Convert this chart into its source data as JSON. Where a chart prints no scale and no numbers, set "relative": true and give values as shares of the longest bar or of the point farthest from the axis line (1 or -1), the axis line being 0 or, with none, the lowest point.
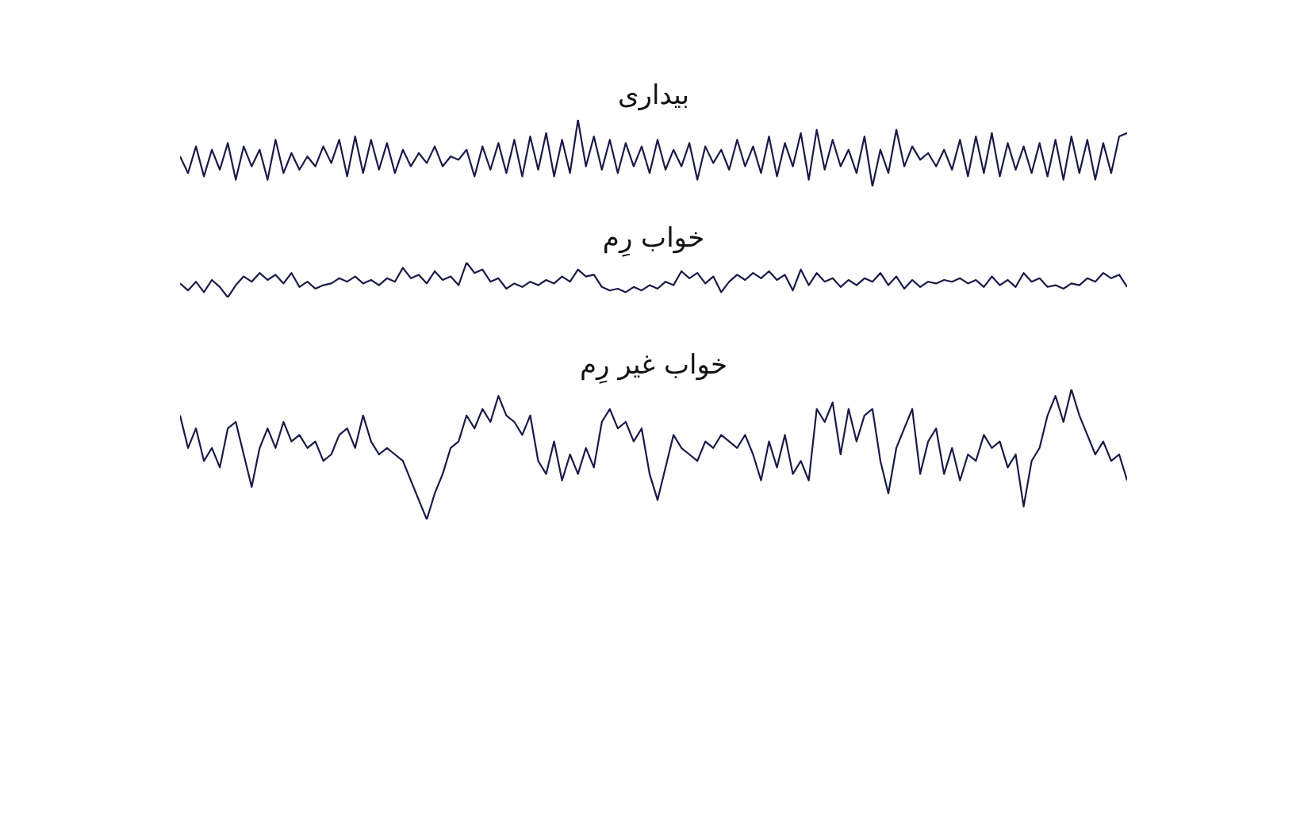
{
  "chart_data": [
    {
      "type": "line",
      "title": "بیداری",
      "relative": true,
      "tick_labels": false,
      "line_style": "solid",
      "categories": [
        null,
        null,
        null,
        null,
        null,
        null,
        null,
        null,
        null,
        null,
        null,
        null,
        null,
        null,
        null,
        null,
        null,
        null,
        null,
        null,
        null,
        null,
        null,
        null,
        null,
        null,
        null,
        null,
        null,
        null,
        null,
        null,
        null,
        null,
        null,
        null,
        null,
        null,
        null,
        null,
        null,
        null,
        null,
        null,
        null,
        null,
        null,
        null,
        null,
        null,
        null,
        null,
        null,
        null,
        null,
        null,
        null,
        null,
        null,
        null,
        null,
        null,
        null,
        null,
        null,
        null,
        null,
        null,
        null,
        null,
        null,
        null,
        null,
        null,
        null,
        null,
        null,
        null,
        null,
        null,
        null,
        null,
        null,
        null,
        null,
        null,
        null,
        null,
        null,
        null,
        null,
        null,
        null,
        null,
        null,
        null,
        null,
        null,
        null,
        null,
        null,
        null,
        null,
        null,
        null,
        null,
        null,
        null,
        null,
        null,
        null,
        null,
        null,
        null,
        null,
        null,
        null,
        null,
        null,
        null
      ],
      "series": [
        {
          "color": "#1a1a4a",
          "values": [
            0.45,
            0.2,
            0.6,
            0.15,
            0.55,
            0.25,
            0.65,
            0.1,
            0.6,
            0.3,
            0.55,
            0.1,
            0.7,
            0.2,
            0.5,
            0.25,
            0.45,
            0.3,
            0.6,
            0.35,
            0.7,
            0.15,
            0.75,
            0.2,
            0.7,
            0.25,
            0.65,
            0.2,
            0.55,
            0.3,
            0.5,
            0.35,
            0.6,
            0.3,
            0.45,
            0.4,
            0.55,
            0.15,
            0.6,
            0.25,
            0.65,
            0.2,
            0.7,
            0.15,
            0.75,
            0.25,
            0.8,
            0.15,
            0.7,
            0.2,
            1.0,
            0.3,
            0.75,
            0.25,
            0.7,
            0.2,
            0.65,
            0.3,
            0.6,
            0.2,
            0.7,
            0.25,
            0.55,
            0.3,
            0.65,
            0.1,
            0.6,
            0.35,
            0.55,
            0.25,
            0.7,
            0.3,
            0.6,
            0.2,
            0.75,
            0.15,
            0.65,
            0.3,
            0.8,
            0.1,
            0.85,
            0.25,
            0.7,
            0.3,
            0.55,
            0.2,
            0.75,
            0.0,
            0.55,
            0.2,
            0.85,
            0.3,
            0.6,
            0.4,
            0.5,
            0.3,
            0.55,
            0.25,
            0.7,
            0.15,
            0.75,
            0.2,
            0.8,
            0.15,
            0.65,
            0.25,
            0.6,
            0.2,
            0.65,
            0.15,
            0.7,
            0.1,
            0.75,
            0.2,
            0.7,
            0.1,
            0.65,
            0.2,
            0.75,
            0.8
          ]
        }
      ]
    },
    {
      "type": "line",
      "title": "خواب رِم",
      "relative": true,
      "tick_labels": false,
      "line_style": "solid",
      "categories": [
        null,
        null,
        null,
        null,
        null,
        null,
        null,
        null,
        null,
        null,
        null,
        null,
        null,
        null,
        null,
        null,
        null,
        null,
        null,
        null,
        null,
        null,
        null,
        null,
        null,
        null,
        null,
        null,
        null,
        null,
        null,
        null,
        null,
        null,
        null,
        null,
        null,
        null,
        null,
        null,
        null,
        null,
        null,
        null,
        null,
        null,
        null,
        null,
        null,
        null,
        null,
        null,
        null,
        null,
        null,
        null,
        null,
        null,
        null,
        null,
        null,
        null,
        null,
        null,
        null,
        null,
        null,
        null,
        null,
        null,
        null,
        null,
        null,
        null,
        null,
        null,
        null,
        null,
        null,
        null,
        null,
        null,
        null,
        null,
        null,
        null,
        null,
        null,
        null,
        null,
        null,
        null,
        null,
        null,
        null,
        null,
        null,
        null,
        null,
        null,
        null,
        null,
        null,
        null,
        null,
        null,
        null,
        null,
        null,
        null,
        null,
        null,
        null,
        null,
        null,
        null,
        null,
        null,
        null,
        null
      ],
      "series": [
        {
          "color": "#1a1a4a",
          "values": [
            0.4,
            0.2,
            0.45,
            0.15,
            0.5,
            0.3,
            0.0,
            0.35,
            0.6,
            0.45,
            0.7,
            0.5,
            0.65,
            0.4,
            0.7,
            0.3,
            0.45,
            0.25,
            0.35,
            0.4,
            0.55,
            0.45,
            0.6,
            0.4,
            0.5,
            0.35,
            0.55,
            0.45,
            0.85,
            0.55,
            0.65,
            0.4,
            0.75,
            0.5,
            0.6,
            0.35,
            1.0,
            0.7,
            0.8,
            0.45,
            0.55,
            0.25,
            0.4,
            0.3,
            0.45,
            0.35,
            0.5,
            0.4,
            0.6,
            0.45,
            0.8,
            0.6,
            0.65,
            0.3,
            0.2,
            0.25,
            0.15,
            0.3,
            0.2,
            0.35,
            0.25,
            0.45,
            0.35,
            0.75,
            0.55,
            0.7,
            0.4,
            0.6,
            0.15,
            0.45,
            0.65,
            0.5,
            0.7,
            0.55,
            0.75,
            0.5,
            0.65,
            0.2,
            0.8,
            0.35,
            0.7,
            0.45,
            0.55,
            0.3,
            0.5,
            0.35,
            0.55,
            0.45,
            0.7,
            0.35,
            0.6,
            0.25,
            0.5,
            0.3,
            0.45,
            0.4,
            0.5,
            0.45,
            0.55,
            0.4,
            0.5,
            0.3,
            0.6,
            0.35,
            0.5,
            0.3,
            0.7,
            0.45,
            0.55,
            0.3,
            0.35,
            0.25,
            0.4,
            0.35,
            0.55,
            0.45,
            0.7,
            0.55,
            0.65,
            0.3
          ]
        }
      ]
    },
    {
      "type": "line",
      "title": "خواب غیر رِم",
      "relative": true,
      "tick_labels": false,
      "line_style": "solid",
      "categories": [
        null,
        null,
        null,
        null,
        null,
        null,
        null,
        null,
        null,
        null,
        null,
        null,
        null,
        null,
        null,
        null,
        null,
        null,
        null,
        null,
        null,
        null,
        null,
        null,
        null,
        null,
        null,
        null,
        null,
        null,
        null,
        null,
        null,
        null,
        null,
        null,
        null,
        null,
        null,
        null,
        null,
        null,
        null,
        null,
        null,
        null,
        null,
        null,
        null,
        null,
        null,
        null,
        null,
        null,
        null,
        null,
        null,
        null,
        null,
        null,
        null,
        null,
        null,
        null,
        null,
        null,
        null,
        null,
        null,
        null,
        null,
        null,
        null,
        null,
        null,
        null,
        null,
        null,
        null,
        null,
        null,
        null,
        null,
        null,
        null,
        null,
        null,
        null,
        null,
        null,
        null,
        null,
        null,
        null,
        null,
        null,
        null,
        null,
        null,
        null,
        null,
        null,
        null,
        null,
        null,
        null,
        null,
        null,
        null,
        null,
        null,
        null,
        null,
        null,
        null,
        null,
        null,
        null,
        null,
        null
      ],
      "series": [
        {
          "color": "#1a1a4a",
          "values": [
            0.8,
            0.55,
            0.7,
            0.45,
            0.55,
            0.4,
            0.7,
            0.75,
            0.5,
            0.25,
            0.55,
            0.7,
            0.55,
            0.75,
            0.6,
            0.65,
            0.55,
            0.6,
            0.45,
            0.5,
            0.65,
            0.7,
            0.55,
            0.8,
            0.6,
            0.5,
            0.55,
            0.5,
            0.45,
            0.3,
            0.15,
            0.0,
            0.2,
            0.35,
            0.55,
            0.6,
            0.8,
            0.7,
            0.85,
            0.75,
            0.95,
            0.8,
            0.75,
            0.65,
            0.8,
            0.45,
            0.35,
            0.6,
            0.3,
            0.5,
            0.35,
            0.55,
            0.4,
            0.75,
            0.85,
            0.7,
            0.75,
            0.6,
            0.7,
            0.35,
            0.15,
            0.4,
            0.65,
            0.55,
            0.5,
            0.45,
            0.6,
            0.55,
            0.65,
            0.6,
            0.55,
            0.65,
            0.5,
            0.3,
            0.6,
            0.4,
            0.65,
            0.35,
            0.45,
            0.3,
            0.85,
            0.75,
            0.9,
            0.5,
            0.85,
            0.6,
            0.8,
            0.85,
            0.45,
            0.2,
            0.55,
            0.7,
            0.85,
            0.35,
            0.6,
            0.7,
            0.35,
            0.55,
            0.3,
            0.5,
            0.45,
            0.65,
            0.55,
            0.6,
            0.4,
            0.5,
            0.1,
            0.45,
            0.55,
            0.8,
            0.95,
            0.75,
            1.0,
            0.8,
            0.65,
            0.5,
            0.6,
            0.45,
            0.5,
            0.3
          ]
        }
      ]
    }
  ]
}
